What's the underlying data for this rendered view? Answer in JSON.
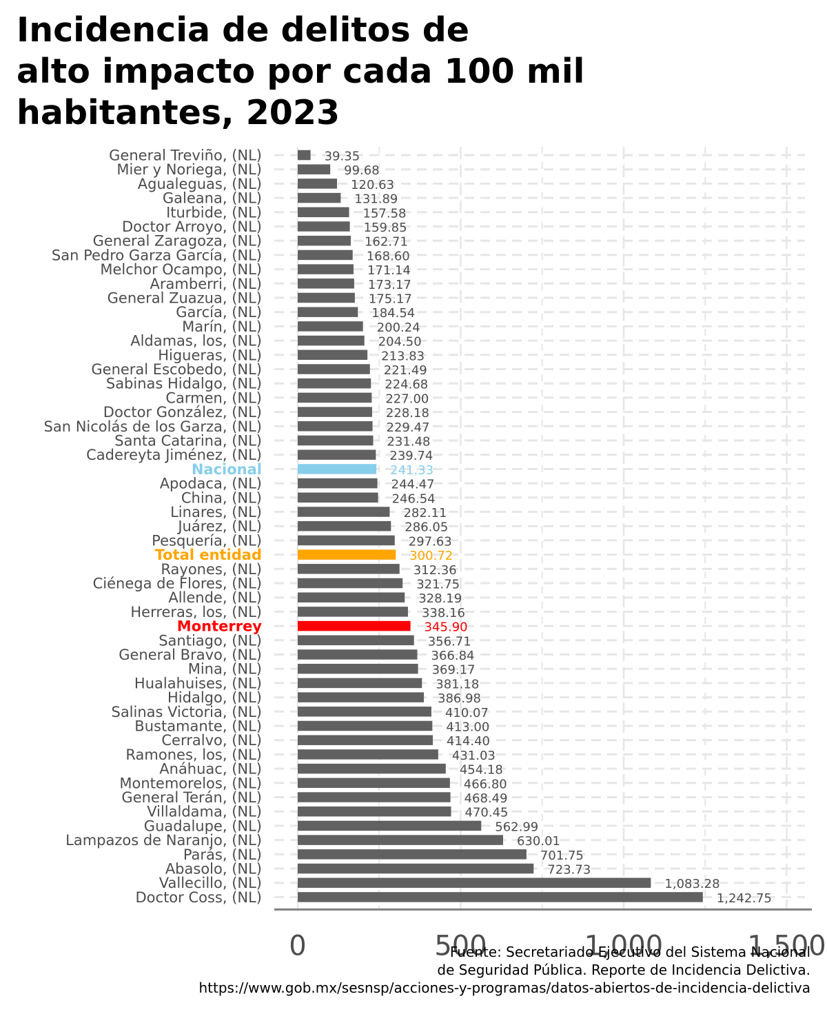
{
  "title": {
    "line1": "Incidencia de delitos de",
    "line2": "alto impacto por cada 100 mil",
    "line3": "habitantes, 2023"
  },
  "caption": {
    "line1": "Fuente: Secretariado Ejecutivo del Sistema Nacional",
    "line2": "de Seguridad Pública. Reporte de Incidencia Delictiva.",
    "line3": "https://www.gob.mx/sesnsp/acciones-y-programas/datos-abiertos-de-incidencia-delictiva"
  },
  "colors": {
    "bar": "#616161",
    "nacional": "#87CEEB",
    "total": "#FFA500",
    "monterrey": "#FF0000",
    "label": "#4d4d4d",
    "grid": "#e6e6e6",
    "axis": "#7f7f7f"
  },
  "chart_data": {
    "type": "bar",
    "orientation": "horizontal",
    "xlim": [
      -70,
      1570
    ],
    "xticks": [
      0,
      500,
      1000,
      1500
    ],
    "xtick_labels": [
      "0",
      "500",
      "1,000",
      "1,500"
    ],
    "grid": true,
    "legend": "none",
    "bars": [
      {
        "label": "General Treviño, (NL)",
        "value": 39.35,
        "value_label": "39.35",
        "highlight": "none"
      },
      {
        "label": "Mier y Noriega, (NL)",
        "value": 99.68,
        "value_label": "99.68",
        "highlight": "none"
      },
      {
        "label": "Agualeguas, (NL)",
        "value": 120.63,
        "value_label": "120.63",
        "highlight": "none"
      },
      {
        "label": "Galeana, (NL)",
        "value": 131.89,
        "value_label": "131.89",
        "highlight": "none"
      },
      {
        "label": "Iturbide, (NL)",
        "value": 157.58,
        "value_label": "157.58",
        "highlight": "none"
      },
      {
        "label": "Doctor Arroyo, (NL)",
        "value": 159.85,
        "value_label": "159.85",
        "highlight": "none"
      },
      {
        "label": "General Zaragoza, (NL)",
        "value": 162.71,
        "value_label": "162.71",
        "highlight": "none"
      },
      {
        "label": "San Pedro Garza García, (NL)",
        "value": 168.6,
        "value_label": "168.60",
        "highlight": "none"
      },
      {
        "label": "Melchor Ocampo, (NL)",
        "value": 171.14,
        "value_label": "171.14",
        "highlight": "none"
      },
      {
        "label": "Aramberri, (NL)",
        "value": 173.17,
        "value_label": "173.17",
        "highlight": "none"
      },
      {
        "label": "General Zuazua, (NL)",
        "value": 175.17,
        "value_label": "175.17",
        "highlight": "none"
      },
      {
        "label": "García, (NL)",
        "value": 184.54,
        "value_label": "184.54",
        "highlight": "none"
      },
      {
        "label": "Marín, (NL)",
        "value": 200.24,
        "value_label": "200.24",
        "highlight": "none"
      },
      {
        "label": "Aldamas, los, (NL)",
        "value": 204.5,
        "value_label": "204.50",
        "highlight": "none"
      },
      {
        "label": "Higueras, (NL)",
        "value": 213.83,
        "value_label": "213.83",
        "highlight": "none"
      },
      {
        "label": "General Escobedo, (NL)",
        "value": 221.49,
        "value_label": "221.49",
        "highlight": "none"
      },
      {
        "label": "Sabinas Hidalgo, (NL)",
        "value": 224.68,
        "value_label": "224.68",
        "highlight": "none"
      },
      {
        "label": "Carmen, (NL)",
        "value": 227.0,
        "value_label": "227.00",
        "highlight": "none"
      },
      {
        "label": "Doctor González, (NL)",
        "value": 228.18,
        "value_label": "228.18",
        "highlight": "none"
      },
      {
        "label": "San Nicolás de los Garza, (NL)",
        "value": 229.47,
        "value_label": "229.47",
        "highlight": "none"
      },
      {
        "label": "Santa Catarina, (NL)",
        "value": 231.48,
        "value_label": "231.48",
        "highlight": "none"
      },
      {
        "label": "Cadereyta Jiménez, (NL)",
        "value": 239.74,
        "value_label": "239.74",
        "highlight": "none"
      },
      {
        "label": "Nacional",
        "value": 241.33,
        "value_label": "241.33",
        "highlight": "nacional"
      },
      {
        "label": "Apodaca, (NL)",
        "value": 244.47,
        "value_label": "244.47",
        "highlight": "none"
      },
      {
        "label": "China, (NL)",
        "value": 246.54,
        "value_label": "246.54",
        "highlight": "none"
      },
      {
        "label": "Linares, (NL)",
        "value": 282.11,
        "value_label": "282.11",
        "highlight": "none"
      },
      {
        "label": "Juárez, (NL)",
        "value": 286.05,
        "value_label": "286.05",
        "highlight": "none"
      },
      {
        "label": "Pesquería, (NL)",
        "value": 297.63,
        "value_label": "297.63",
        "highlight": "none"
      },
      {
        "label": "Total entidad",
        "value": 300.72,
        "value_label": "300.72",
        "highlight": "total"
      },
      {
        "label": "Rayones, (NL)",
        "value": 312.36,
        "value_label": "312.36",
        "highlight": "none"
      },
      {
        "label": "Ciénega de Flores, (NL)",
        "value": 321.75,
        "value_label": "321.75",
        "highlight": "none"
      },
      {
        "label": "Allende, (NL)",
        "value": 328.19,
        "value_label": "328.19",
        "highlight": "none"
      },
      {
        "label": "Herreras, los, (NL)",
        "value": 338.16,
        "value_label": "338.16",
        "highlight": "none"
      },
      {
        "label": "Monterrey",
        "value": 345.9,
        "value_label": "345.90",
        "highlight": "monterrey"
      },
      {
        "label": "Santiago, (NL)",
        "value": 356.71,
        "value_label": "356.71",
        "highlight": "none"
      },
      {
        "label": "General Bravo, (NL)",
        "value": 366.84,
        "value_label": "366.84",
        "highlight": "none"
      },
      {
        "label": "Mina, (NL)",
        "value": 369.17,
        "value_label": "369.17",
        "highlight": "none"
      },
      {
        "label": "Hualahuises, (NL)",
        "value": 381.18,
        "value_label": "381.18",
        "highlight": "none"
      },
      {
        "label": "Hidalgo, (NL)",
        "value": 386.98,
        "value_label": "386.98",
        "highlight": "none"
      },
      {
        "label": "Salinas Victoria, (NL)",
        "value": 410.07,
        "value_label": "410.07",
        "highlight": "none"
      },
      {
        "label": "Bustamante, (NL)",
        "value": 413.0,
        "value_label": "413.00",
        "highlight": "none"
      },
      {
        "label": "Cerralvo, (NL)",
        "value": 414.4,
        "value_label": "414.40",
        "highlight": "none"
      },
      {
        "label": "Ramones, los, (NL)",
        "value": 431.03,
        "value_label": "431.03",
        "highlight": "none"
      },
      {
        "label": "Anáhuac, (NL)",
        "value": 454.18,
        "value_label": "454.18",
        "highlight": "none"
      },
      {
        "label": "Montemorelos, (NL)",
        "value": 466.8,
        "value_label": "466.80",
        "highlight": "none"
      },
      {
        "label": "General Terán, (NL)",
        "value": 468.49,
        "value_label": "468.49",
        "highlight": "none"
      },
      {
        "label": "Villaldama, (NL)",
        "value": 470.45,
        "value_label": "470.45",
        "highlight": "none"
      },
      {
        "label": "Guadalupe, (NL)",
        "value": 562.99,
        "value_label": "562.99",
        "highlight": "none"
      },
      {
        "label": "Lampazos de Naranjo, (NL)",
        "value": 630.01,
        "value_label": "630.01",
        "highlight": "none"
      },
      {
        "label": "Parás, (NL)",
        "value": 701.75,
        "value_label": "701.75",
        "highlight": "none"
      },
      {
        "label": "Abasolo, (NL)",
        "value": 723.73,
        "value_label": "723.73",
        "highlight": "none"
      },
      {
        "label": "Vallecillo, (NL)",
        "value": 1083.28,
        "value_label": "1,083.28",
        "highlight": "none"
      },
      {
        "label": "Doctor Coss, (NL)",
        "value": 1242.75,
        "value_label": "1,242.75",
        "highlight": "none"
      }
    ]
  }
}
